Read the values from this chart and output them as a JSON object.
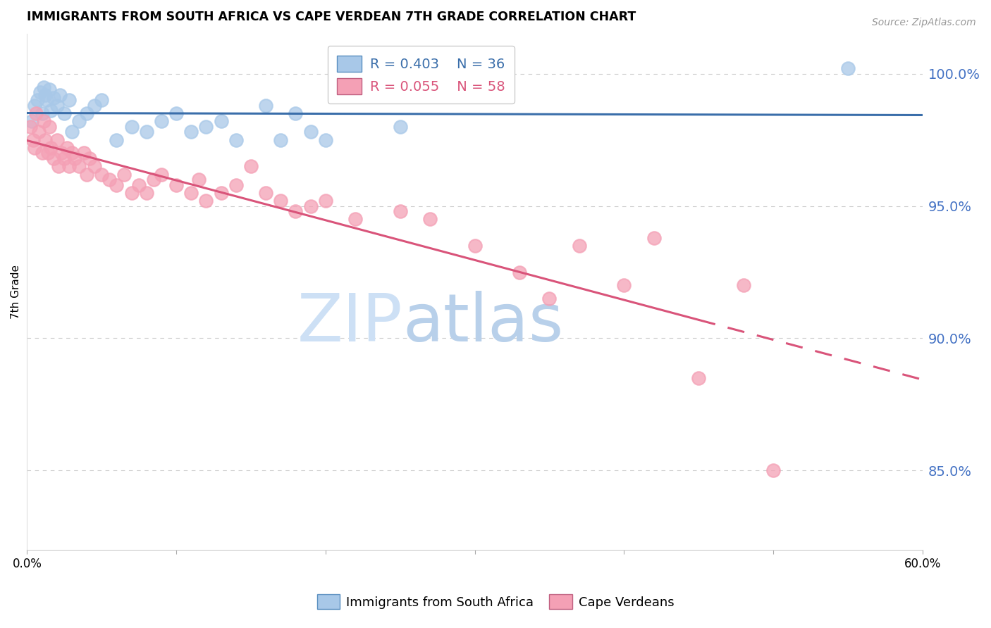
{
  "title": "IMMIGRANTS FROM SOUTH AFRICA VS CAPE VERDEAN 7TH GRADE CORRELATION CHART",
  "source": "Source: ZipAtlas.com",
  "ylabel": "7th Grade",
  "yticks": [
    85.0,
    90.0,
    95.0,
    100.0
  ],
  "xlim": [
    0.0,
    60.0
  ],
  "ylim": [
    82.0,
    101.5
  ],
  "blue_R": 0.403,
  "blue_N": 36,
  "pink_R": 0.055,
  "pink_N": 58,
  "blue_color": "#a8c8e8",
  "pink_color": "#f4a0b5",
  "blue_line_color": "#3a6eaa",
  "pink_line_color": "#d9547a",
  "grid_color": "#cccccc",
  "right_axis_color": "#4472c4",
  "watermark_zip_color": "#cde0f5",
  "watermark_atlas_color": "#b0c8e8",
  "blue_scatter_x": [
    0.3,
    0.5,
    0.7,
    0.9,
    1.0,
    1.1,
    1.2,
    1.3,
    1.5,
    1.6,
    1.8,
    2.0,
    2.2,
    2.5,
    2.8,
    3.0,
    3.5,
    4.0,
    4.5,
    5.0,
    6.0,
    7.0,
    8.0,
    9.0,
    10.0,
    11.0,
    12.0,
    13.0,
    14.0,
    16.0,
    17.0,
    18.0,
    19.0,
    20.0,
    25.0,
    55.0
  ],
  "blue_scatter_y": [
    98.2,
    98.8,
    99.0,
    99.3,
    98.5,
    99.5,
    99.2,
    99.0,
    99.4,
    98.6,
    99.1,
    98.8,
    99.2,
    98.5,
    99.0,
    97.8,
    98.2,
    98.5,
    98.8,
    99.0,
    97.5,
    98.0,
    97.8,
    98.2,
    98.5,
    97.8,
    98.0,
    98.2,
    97.5,
    98.8,
    97.5,
    98.5,
    97.8,
    97.5,
    98.0,
    100.2
  ],
  "pink_scatter_x": [
    0.2,
    0.4,
    0.5,
    0.6,
    0.8,
    1.0,
    1.1,
    1.2,
    1.4,
    1.5,
    1.6,
    1.8,
    2.0,
    2.1,
    2.3,
    2.5,
    2.7,
    2.8,
    3.0,
    3.2,
    3.5,
    3.8,
    4.0,
    4.2,
    4.5,
    5.0,
    5.5,
    6.0,
    6.5,
    7.0,
    7.5,
    8.0,
    8.5,
    9.0,
    10.0,
    11.0,
    11.5,
    12.0,
    13.0,
    14.0,
    15.0,
    16.0,
    17.0,
    18.0,
    19.0,
    20.0,
    22.0,
    25.0,
    27.0,
    30.0,
    33.0,
    35.0,
    37.0,
    40.0,
    42.0,
    45.0,
    48.0,
    50.0
  ],
  "pink_scatter_y": [
    98.0,
    97.5,
    97.2,
    98.5,
    97.8,
    97.0,
    98.2,
    97.5,
    97.0,
    98.0,
    97.2,
    96.8,
    97.5,
    96.5,
    97.0,
    96.8,
    97.2,
    96.5,
    97.0,
    96.8,
    96.5,
    97.0,
    96.2,
    96.8,
    96.5,
    96.2,
    96.0,
    95.8,
    96.2,
    95.5,
    95.8,
    95.5,
    96.0,
    96.2,
    95.8,
    95.5,
    96.0,
    95.2,
    95.5,
    95.8,
    96.5,
    95.5,
    95.2,
    94.8,
    95.0,
    95.2,
    94.5,
    94.8,
    94.5,
    93.5,
    92.5,
    91.5,
    93.5,
    92.0,
    93.8,
    88.5,
    92.0,
    85.0
  ]
}
